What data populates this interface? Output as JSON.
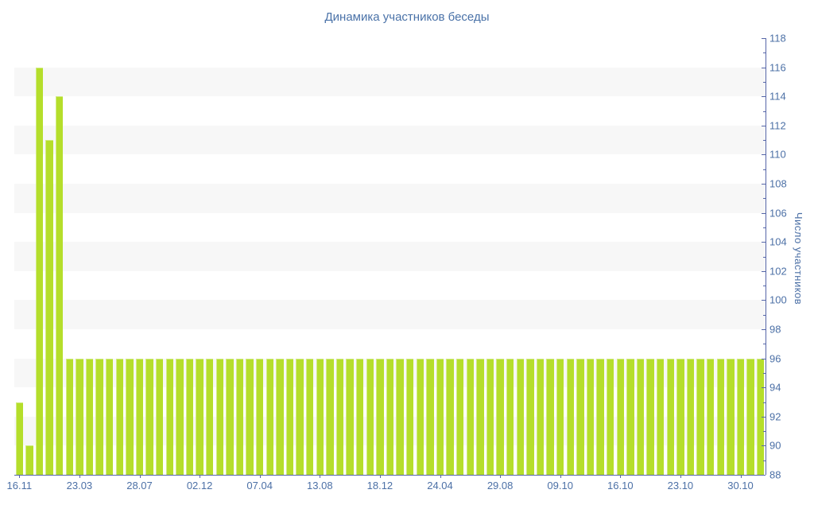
{
  "chart_data": {
    "type": "bar",
    "title": "Динамика участников беседы",
    "ylabel": "Число участников",
    "xlabel": "",
    "ylim": [
      88,
      118
    ],
    "y_major_step": 2,
    "y_minor_step": 1,
    "grid": "alternating-horizontal-bands",
    "legend": "none",
    "bar_count": 75,
    "values": [
      93,
      90,
      116,
      111,
      114,
      96,
      96,
      96,
      96,
      96,
      96,
      96,
      96,
      96,
      96,
      96,
      96,
      96,
      96,
      96,
      96,
      96,
      96,
      96,
      96,
      96,
      96,
      96,
      96,
      96,
      96,
      96,
      96,
      96,
      96,
      96,
      96,
      96,
      96,
      96,
      96,
      96,
      96,
      96,
      96,
      96,
      96,
      96,
      96,
      96,
      96,
      96,
      96,
      96,
      96,
      96,
      96,
      96,
      96,
      96,
      96,
      96,
      96,
      96,
      96,
      96,
      96,
      96,
      96,
      96,
      96,
      96,
      96,
      96,
      96
    ],
    "x_tick_labels": [
      "16.11",
      "23.03",
      "28.07",
      "02.12",
      "07.04",
      "13.08",
      "18.12",
      "24.04",
      "29.08",
      "09.10",
      "16.10",
      "23.10",
      "30.10"
    ],
    "x_tick_bar_indices": [
      0,
      6,
      12,
      18,
      24,
      30,
      36,
      42,
      48,
      54,
      60,
      66,
      72
    ]
  },
  "colors": {
    "bar_fill": "#b5de2b",
    "bar_highlight": "#d0eb80",
    "axis_line": "#5666a8",
    "tick_label": "#4c70a6",
    "title_text": "#4a72a8",
    "band_fill": "#f7f7f7"
  }
}
